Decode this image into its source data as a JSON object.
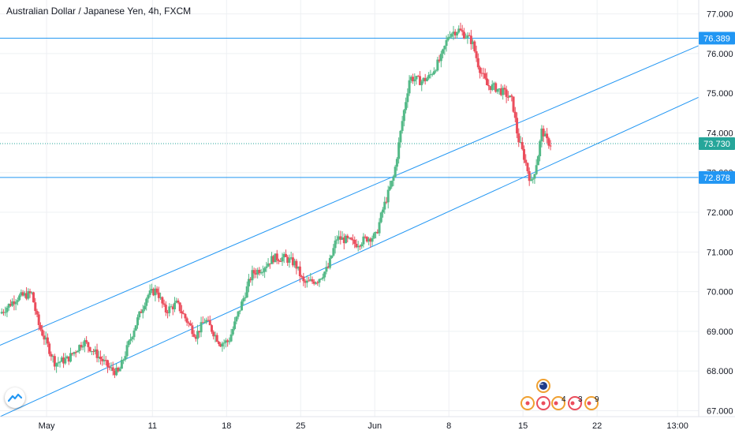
{
  "header": {
    "title": "Australian Dollar / Japanese Yen, 4h, FXCM"
  },
  "colors": {
    "up": "#53b987",
    "down": "#eb4d5c",
    "line": "#2196f3",
    "price_line": "#26a69a",
    "grid": "#eef0f3",
    "axis_text": "#131722"
  },
  "chart_data": {
    "type": "candlestick",
    "title": "Australian Dollar / Japanese Yen, 4h, FXCM",
    "symbol": "AUDJPY",
    "timeframe": "4h",
    "source": "FXCM",
    "ylim": [
      66.85,
      77.35
    ],
    "y_ticks": [
      "77.000",
      "76.000",
      "75.000",
      "74.000",
      "73.000",
      "72.000",
      "71.000",
      "70.000",
      "69.000",
      "68.000",
      "67.000"
    ],
    "x_ticks": [
      "May",
      "11",
      "18",
      "25",
      "Jun",
      "8",
      "15",
      "22",
      "13:00"
    ],
    "x_tick_days": [
      0,
      10,
      17,
      24,
      31,
      38,
      45,
      52,
      59.6
    ],
    "x_range_days": [
      -4.4,
      61.6
    ],
    "grid": true,
    "horizontal_lines": [
      {
        "value": 76.389,
        "label": "76.389"
      },
      {
        "value": 72.878,
        "label": "72.878"
      }
    ],
    "current_price": {
      "value": 73.73,
      "label": "73.730"
    },
    "trend_lines": [
      {
        "p1": {
          "day": -4.4,
          "value": 68.65
        },
        "p2": {
          "day": 61.6,
          "value": 76.2
        }
      },
      {
        "p1": {
          "day": -4.4,
          "value": 66.85
        },
        "p2": {
          "day": 61.6,
          "value": 74.9
        }
      }
    ],
    "price_path": [
      [
        -4.4,
        69.45
      ],
      [
        -2.8,
        69.85
      ],
      [
        -1.4,
        69.95
      ],
      [
        -0.8,
        69.2
      ],
      [
        0.8,
        68.2
      ],
      [
        2.0,
        68.3
      ],
      [
        3.5,
        68.75
      ],
      [
        4.8,
        68.4
      ],
      [
        6.0,
        68.05
      ],
      [
        6.8,
        67.95
      ],
      [
        8.3,
        69.1
      ],
      [
        9.5,
        69.9
      ],
      [
        10.4,
        70.05
      ],
      [
        11.2,
        69.5
      ],
      [
        12.3,
        69.7
      ],
      [
        13.4,
        69.2
      ],
      [
        14.1,
        68.9
      ],
      [
        15.0,
        69.3
      ],
      [
        16.4,
        68.7
      ],
      [
        17.2,
        68.75
      ],
      [
        18.3,
        69.6
      ],
      [
        19.4,
        70.45
      ],
      [
        20.4,
        70.6
      ],
      [
        21.4,
        70.85
      ],
      [
        22.5,
        70.85
      ],
      [
        23.5,
        70.7
      ],
      [
        24.3,
        70.2
      ],
      [
        25.6,
        70.3
      ],
      [
        26.6,
        70.6
      ],
      [
        27.4,
        71.35
      ],
      [
        28.3,
        71.3
      ],
      [
        29.2,
        71.2
      ],
      [
        30.3,
        71.35
      ],
      [
        31.1,
        71.4
      ],
      [
        31.8,
        72.1
      ],
      [
        32.8,
        72.9
      ],
      [
        33.6,
        74.3
      ],
      [
        34.3,
        75.4
      ],
      [
        35.4,
        75.3
      ],
      [
        36.1,
        75.4
      ],
      [
        37.3,
        75.9
      ],
      [
        38.0,
        76.5
      ],
      [
        38.9,
        76.6
      ],
      [
        39.6,
        76.45
      ],
      [
        40.2,
        76.3
      ],
      [
        40.8,
        75.7
      ],
      [
        41.6,
        75.2
      ],
      [
        42.3,
        75.15
      ],
      [
        43.3,
        75.0
      ],
      [
        44.0,
        74.8
      ],
      [
        44.5,
        73.9
      ],
      [
        45.1,
        73.4
      ],
      [
        45.8,
        72.7
      ],
      [
        46.4,
        73.4
      ],
      [
        46.8,
        74.1
      ],
      [
        47.2,
        73.8
      ],
      [
        47.6,
        73.73
      ]
    ]
  },
  "events": {
    "upper_row": [
      {
        "label": ""
      }
    ],
    "lower_row": [
      {
        "label": ""
      },
      {
        "label": ""
      },
      {
        "label": "4"
      },
      {
        "label": "3"
      },
      {
        "label": "9"
      }
    ]
  }
}
